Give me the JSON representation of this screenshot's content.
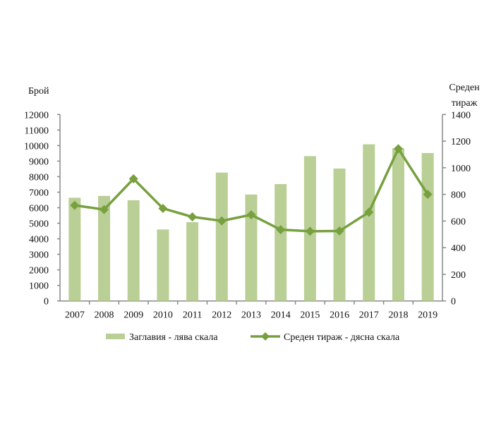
{
  "chart_data": {
    "type": "bar",
    "categories": [
      "2007",
      "2008",
      "2009",
      "2010",
      "2011",
      "2012",
      "2013",
      "2014",
      "2015",
      "2016",
      "2017",
      "2018",
      "2019"
    ],
    "series": [
      {
        "name": "Заглавия - лява скала",
        "type": "bar",
        "axis": "left",
        "color": "#b9cf95",
        "values": [
          6640,
          6760,
          6480,
          4600,
          5070,
          8260,
          6850,
          7520,
          9320,
          8520,
          10080,
          9830,
          9520
        ]
      },
      {
        "name": "Среден тираж - дясна скала",
        "type": "line",
        "axis": "right",
        "color": "#77a03f",
        "values": [
          718,
          686,
          917,
          695,
          631,
          601,
          647,
          535,
          523,
          525,
          666,
          1143,
          800
        ]
      }
    ],
    "ylabel_left": "Брой",
    "ylabel_right": [
      "Среден",
      "тираж"
    ],
    "ylim_left": [
      0,
      12000
    ],
    "yticks_left": [
      0,
      1000,
      2000,
      3000,
      4000,
      5000,
      6000,
      7000,
      8000,
      9000,
      10000,
      11000,
      12000
    ],
    "ylim_right": [
      0,
      1400
    ],
    "yticks_right": [
      0,
      200,
      400,
      600,
      800,
      1000,
      1200,
      1400
    ],
    "legend_position": "bottom",
    "grid": false
  }
}
